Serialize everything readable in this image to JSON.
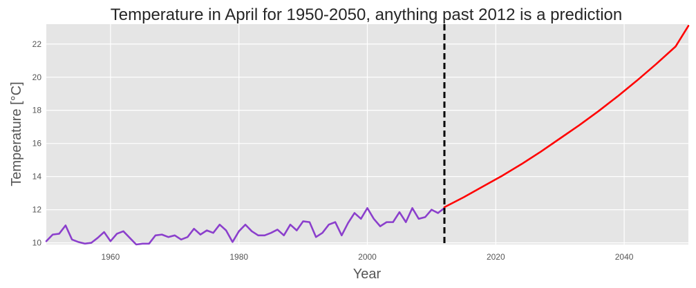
{
  "chart_data": {
    "type": "line",
    "title": "Temperature in April for 1950-2050, anything past 2012 is a prediction",
    "xlabel": "Year",
    "ylabel": "Temperature [°C]",
    "xlim": [
      1950,
      2050
    ],
    "ylim": [
      9.9,
      23.2
    ],
    "xticks": [
      1960,
      1980,
      2000,
      2020,
      2040
    ],
    "yticks": [
      10,
      12,
      14,
      16,
      18,
      20,
      22
    ],
    "grid": true,
    "colors": {
      "plot_background": "#e5e5e5",
      "grid": "#ffffff",
      "observed": "#8b3fcc",
      "prediction": "#ff0000",
      "divider": "#000000"
    },
    "divider_x": 2012,
    "series": [
      {
        "x": [
          1950,
          1951,
          1952,
          1953,
          1954,
          1955,
          1956,
          1957,
          1958,
          1959,
          1960,
          1961,
          1962,
          1963,
          1964,
          1965,
          1966,
          1967,
          1968,
          1969,
          1970,
          1971,
          1972,
          1973,
          1974,
          1975,
          1976,
          1977,
          1978,
          1979,
          1980,
          1981,
          1982,
          1983,
          1984,
          1985,
          1986,
          1987,
          1988,
          1989,
          1990,
          1991,
          1992,
          1993,
          1994,
          1995,
          1996,
          1997,
          1998,
          1999,
          2000,
          2001,
          2002,
          2003,
          2004,
          2005,
          2006,
          2007,
          2008,
          2009,
          2010,
          2011,
          2012
        ],
        "y": [
          10.1,
          10.5,
          10.55,
          11.05,
          10.2,
          10.05,
          9.95,
          10.0,
          10.3,
          10.65,
          10.1,
          10.55,
          10.7,
          10.3,
          9.9,
          9.95,
          9.95,
          10.45,
          10.5,
          10.35,
          10.45,
          10.2,
          10.35,
          10.85,
          10.5,
          10.75,
          10.6,
          11.1,
          10.75,
          10.05,
          10.7,
          11.1,
          10.7,
          10.45,
          10.45,
          10.6,
          10.8,
          10.45,
          11.1,
          10.75,
          11.3,
          11.25,
          10.35,
          10.6,
          11.1,
          11.25,
          10.45,
          11.2,
          11.8,
          11.45,
          12.1,
          11.45,
          11.0,
          11.25,
          11.25,
          11.85,
          11.25,
          12.1,
          11.45,
          11.55,
          12.0,
          11.8,
          12.1
        ]
      },
      {
        "x": [
          2012,
          2015,
          2018,
          2021,
          2024,
          2027,
          2030,
          2033,
          2036,
          2039,
          2042,
          2045,
          2048,
          2050
        ],
        "y": [
          12.15,
          12.75,
          13.4,
          14.05,
          14.75,
          15.5,
          16.3,
          17.1,
          17.95,
          18.85,
          19.8,
          20.8,
          21.85,
          23.1
        ]
      }
    ]
  }
}
